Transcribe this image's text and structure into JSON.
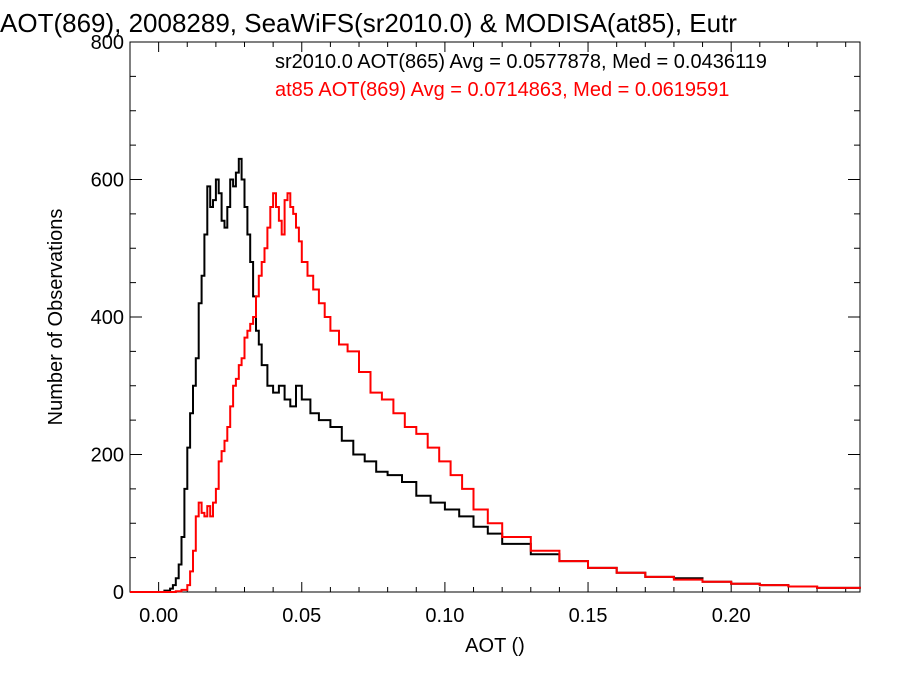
{
  "chart_data": {
    "type": "line",
    "title": "AOT(869), 2008289, SeaWiFS(sr2010.0) & MODISA(at85), Eutr",
    "xlabel": "AOT ()",
    "ylabel": "Number of Observations",
    "xlim": [
      -0.01,
      0.245
    ],
    "ylim": [
      0,
      800
    ],
    "x_ticks": [
      "0.00",
      "0.05",
      "0.10",
      "0.15",
      "0.20"
    ],
    "x_tick_values": [
      0.0,
      0.05,
      0.1,
      0.15,
      0.2
    ],
    "y_ticks": [
      "0",
      "200",
      "400",
      "600",
      "800"
    ],
    "y_tick_values": [
      0,
      200,
      400,
      600,
      800
    ],
    "grid": false,
    "step": true,
    "annotations": [
      {
        "text": "sr2010.0 AOT(865) Avg = 0.0577878, Med = 0.0436119",
        "color": "#000000"
      },
      {
        "text": "at85 AOT(869) Avg = 0.0714863, Med = 0.0619591",
        "color": "#ff0000"
      }
    ],
    "series": [
      {
        "color": "#000000",
        "x": [
          -0.01,
          0.0,
          0.002,
          0.004,
          0.005,
          0.006,
          0.007,
          0.008,
          0.009,
          0.01,
          0.011,
          0.012,
          0.013,
          0.014,
          0.015,
          0.016,
          0.017,
          0.018,
          0.019,
          0.02,
          0.021,
          0.022,
          0.023,
          0.024,
          0.025,
          0.026,
          0.027,
          0.028,
          0.029,
          0.03,
          0.031,
          0.032,
          0.033,
          0.034,
          0.035,
          0.036,
          0.038,
          0.04,
          0.042,
          0.044,
          0.046,
          0.048,
          0.05,
          0.053,
          0.056,
          0.06,
          0.064,
          0.068,
          0.072,
          0.076,
          0.08,
          0.085,
          0.09,
          0.095,
          0.1,
          0.105,
          0.11,
          0.115,
          0.12,
          0.13,
          0.14,
          0.15,
          0.16,
          0.17,
          0.18,
          0.19,
          0.2,
          0.21,
          0.22,
          0.23,
          0.245
        ],
        "values": [
          0,
          0,
          2,
          5,
          10,
          20,
          40,
          80,
          150,
          210,
          260,
          300,
          340,
          420,
          460,
          520,
          590,
          560,
          570,
          600,
          580,
          540,
          530,
          560,
          600,
          590,
          610,
          630,
          600,
          560,
          520,
          480,
          430,
          380,
          360,
          330,
          300,
          290,
          300,
          280,
          270,
          300,
          280,
          260,
          250,
          240,
          220,
          200,
          190,
          175,
          170,
          160,
          140,
          130,
          120,
          110,
          95,
          85,
          70,
          55,
          45,
          35,
          28,
          22,
          20,
          15,
          12,
          10,
          8,
          6,
          5
        ]
      },
      {
        "color": "#ff0000",
        "x": [
          -0.01,
          0.0,
          0.004,
          0.006,
          0.008,
          0.01,
          0.011,
          0.012,
          0.013,
          0.014,
          0.015,
          0.016,
          0.017,
          0.018,
          0.019,
          0.02,
          0.021,
          0.022,
          0.023,
          0.024,
          0.025,
          0.026,
          0.027,
          0.028,
          0.029,
          0.03,
          0.031,
          0.032,
          0.033,
          0.034,
          0.035,
          0.036,
          0.037,
          0.038,
          0.039,
          0.04,
          0.041,
          0.042,
          0.043,
          0.044,
          0.045,
          0.046,
          0.047,
          0.048,
          0.049,
          0.05,
          0.052,
          0.054,
          0.056,
          0.058,
          0.06,
          0.063,
          0.066,
          0.07,
          0.074,
          0.078,
          0.082,
          0.086,
          0.09,
          0.094,
          0.098,
          0.102,
          0.106,
          0.11,
          0.115,
          0.12,
          0.13,
          0.14,
          0.15,
          0.16,
          0.17,
          0.18,
          0.19,
          0.2,
          0.21,
          0.22,
          0.23,
          0.245
        ],
        "values": [
          0,
          0,
          0,
          1,
          3,
          10,
          30,
          60,
          110,
          130,
          115,
          110,
          125,
          110,
          130,
          150,
          190,
          205,
          220,
          240,
          270,
          300,
          310,
          330,
          340,
          370,
          380,
          390,
          400,
          430,
          460,
          480,
          500,
          530,
          560,
          580,
          560,
          540,
          520,
          570,
          580,
          560,
          550,
          530,
          510,
          480,
          460,
          440,
          420,
          400,
          380,
          360,
          350,
          320,
          290,
          280,
          260,
          240,
          230,
          210,
          190,
          170,
          150,
          120,
          100,
          80,
          60,
          45,
          35,
          28,
          22,
          18,
          15,
          12,
          10,
          8,
          6,
          5
        ]
      }
    ]
  }
}
